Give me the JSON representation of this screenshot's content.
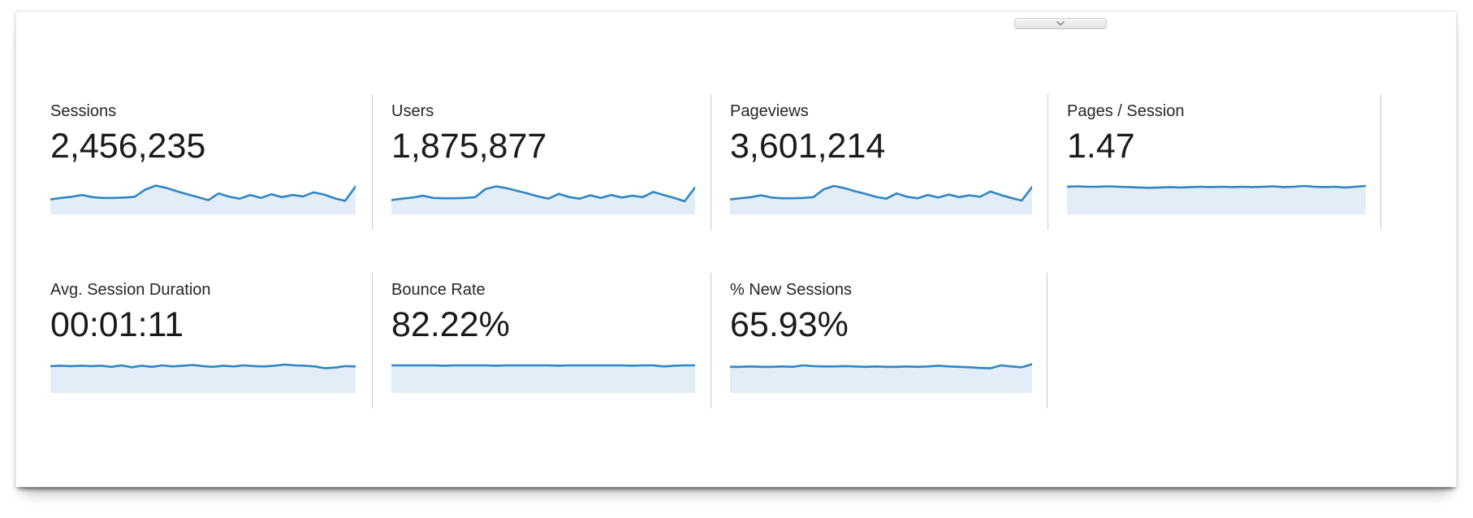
{
  "panel": {
    "name": "analytics-overview-metrics",
    "collapse_icon": "chevron-down"
  },
  "colors": {
    "spark_line": "#2e86c4",
    "spark_fill": "#e3edf7",
    "divider": "#c9c9c9",
    "label_text": "#262626",
    "value_text": "#1b1b1b"
  },
  "rows": [
    {
      "cards": [
        {
          "id": "sessions",
          "label": "Sessions",
          "value": "2,456,235",
          "spark": [
            0.4,
            0.44,
            0.47,
            0.52,
            0.46,
            0.44,
            0.44,
            0.45,
            0.47,
            0.66,
            0.77,
            0.71,
            0.62,
            0.54,
            0.46,
            0.38,
            0.56,
            0.47,
            0.42,
            0.52,
            0.44,
            0.54,
            0.46,
            0.52,
            0.48,
            0.59,
            0.53,
            0.43,
            0.36,
            0.75
          ]
        },
        {
          "id": "users",
          "label": "Users",
          "value": "1,875,877",
          "spark": [
            0.38,
            0.42,
            0.45,
            0.5,
            0.44,
            0.43,
            0.43,
            0.44,
            0.46,
            0.68,
            0.75,
            0.7,
            0.63,
            0.56,
            0.48,
            0.42,
            0.55,
            0.46,
            0.42,
            0.51,
            0.44,
            0.52,
            0.45,
            0.5,
            0.46,
            0.6,
            0.52,
            0.44,
            0.35,
            0.72
          ]
        },
        {
          "id": "pageviews",
          "label": "Pageviews",
          "value": "3,601,214",
          "spark": [
            0.4,
            0.43,
            0.46,
            0.51,
            0.45,
            0.43,
            0.43,
            0.44,
            0.46,
            0.67,
            0.76,
            0.7,
            0.62,
            0.55,
            0.47,
            0.42,
            0.56,
            0.47,
            0.43,
            0.52,
            0.45,
            0.53,
            0.46,
            0.51,
            0.47,
            0.61,
            0.52,
            0.44,
            0.37,
            0.73
          ]
        },
        {
          "id": "pages-per-session",
          "label": "Pages / Session",
          "value": "1.47",
          "spark": [
            0.74,
            0.75,
            0.74,
            0.74,
            0.75,
            0.74,
            0.73,
            0.72,
            0.71,
            0.72,
            0.73,
            0.72,
            0.73,
            0.74,
            0.73,
            0.74,
            0.73,
            0.74,
            0.73,
            0.74,
            0.75,
            0.73,
            0.74,
            0.76,
            0.74,
            0.73,
            0.74,
            0.72,
            0.74,
            0.76
          ]
        }
      ]
    },
    {
      "cards": [
        {
          "id": "avg-session-duration",
          "label": "Avg. Session Duration",
          "value": "00:01:11",
          "spark": [
            0.72,
            0.73,
            0.72,
            0.73,
            0.72,
            0.73,
            0.7,
            0.74,
            0.69,
            0.73,
            0.7,
            0.74,
            0.71,
            0.73,
            0.75,
            0.72,
            0.7,
            0.73,
            0.71,
            0.74,
            0.72,
            0.71,
            0.73,
            0.76,
            0.74,
            0.73,
            0.71,
            0.66,
            0.68,
            0.72,
            0.71
          ]
        },
        {
          "id": "bounce-rate",
          "label": "Bounce Rate",
          "value": "82.22%",
          "spark": [
            0.74,
            0.74,
            0.74,
            0.74,
            0.74,
            0.73,
            0.74,
            0.74,
            0.74,
            0.74,
            0.73,
            0.74,
            0.74,
            0.74,
            0.74,
            0.74,
            0.73,
            0.74,
            0.74,
            0.74,
            0.74,
            0.74,
            0.74,
            0.73,
            0.74,
            0.74,
            0.71,
            0.73,
            0.74,
            0.74
          ]
        },
        {
          "id": "new-sessions",
          "label": "% New Sessions",
          "value": "65.93%",
          "spark": [
            0.7,
            0.7,
            0.71,
            0.7,
            0.7,
            0.71,
            0.7,
            0.74,
            0.72,
            0.71,
            0.71,
            0.72,
            0.71,
            0.7,
            0.71,
            0.7,
            0.7,
            0.71,
            0.7,
            0.71,
            0.73,
            0.71,
            0.7,
            0.69,
            0.67,
            0.66,
            0.74,
            0.71,
            0.69,
            0.77
          ]
        }
      ]
    }
  ]
}
